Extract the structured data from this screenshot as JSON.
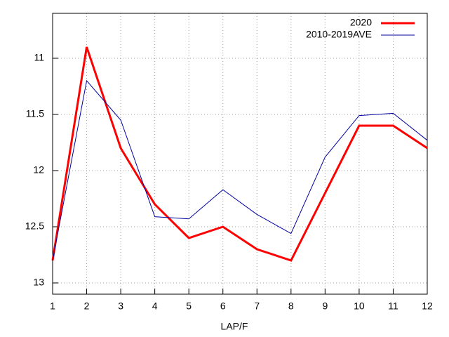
{
  "chart_data": {
    "type": "line",
    "xlabel": "LAP/F",
    "x": [
      1,
      2,
      3,
      4,
      5,
      6,
      7,
      8,
      9,
      10,
      11,
      12
    ],
    "series": [
      {
        "name": "2020",
        "color": "#ff0000",
        "values": [
          12.8,
          10.9,
          11.8,
          12.3,
          12.6,
          12.5,
          12.7,
          12.8,
          12.2,
          11.6,
          11.6,
          11.8
        ]
      },
      {
        "name": "2010-2019AVE",
        "color": "#0000a0",
        "values": [
          12.8,
          11.2,
          11.55,
          12.41,
          12.43,
          12.17,
          12.39,
          12.56,
          11.88,
          11.51,
          11.49,
          11.73
        ]
      }
    ],
    "xlim": [
      1,
      12
    ],
    "xticks": [
      1,
      2,
      3,
      4,
      5,
      6,
      7,
      8,
      9,
      10,
      11,
      12
    ],
    "ylim": [
      10.6,
      13.1
    ],
    "yticks": [
      11,
      11.5,
      12,
      12.5,
      13
    ],
    "y_reversed": true,
    "grid": true,
    "legend": "top-right"
  }
}
